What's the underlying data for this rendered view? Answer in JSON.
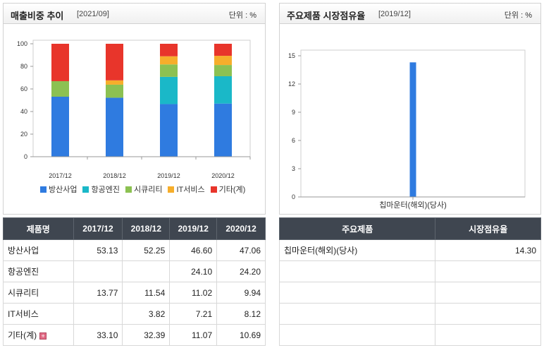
{
  "left": {
    "title": "매출비중 추이",
    "date": "[2021/09]",
    "unit": "단위 : %",
    "table": {
      "headers": [
        "제품명",
        "2017/12",
        "2018/12",
        "2019/12",
        "2020/12"
      ],
      "rows": [
        {
          "label": "방산사업",
          "cells": [
            "53.13",
            "52.25",
            "46.60",
            "47.06"
          ]
        },
        {
          "label": "항공엔진",
          "cells": [
            "",
            "",
            "24.10",
            "24.20"
          ]
        },
        {
          "label": "시큐리티",
          "cells": [
            "13.77",
            "11.54",
            "11.02",
            "9.94"
          ]
        },
        {
          "label": "IT서비스",
          "cells": [
            "",
            "3.82",
            "7.21",
            "8.12"
          ]
        },
        {
          "label": "기타(계)",
          "cells": [
            "33.10",
            "32.39",
            "11.07",
            "10.69"
          ]
        }
      ]
    }
  },
  "right": {
    "title": "주요제품 시장점유율",
    "date": "[2019/12]",
    "unit": "단위 : %",
    "table": {
      "headers": [
        "주요제품",
        "시장점유율"
      ],
      "rows": [
        {
          "label": "칩마운터(해외)(당사)",
          "cells": [
            "14.30"
          ]
        },
        {
          "label": "",
          "cells": [
            ""
          ]
        },
        {
          "label": "",
          "cells": [
            ""
          ]
        },
        {
          "label": "",
          "cells": [
            ""
          ]
        },
        {
          "label": "",
          "cells": [
            ""
          ]
        }
      ]
    }
  },
  "chart_data": [
    {
      "type": "bar",
      "stacked": true,
      "title": "매출비중 추이",
      "categories": [
        "2017/12",
        "2018/12",
        "2019/12",
        "2020/12"
      ],
      "ylim": [
        0,
        100
      ],
      "yticks": [
        "0",
        "20",
        "40",
        "60",
        "80",
        "100"
      ],
      "grid": false,
      "legend_position": "bottom",
      "series": [
        {
          "name": "방산사업",
          "color": "#2f7be0",
          "values": [
            53.13,
            52.25,
            46.6,
            47.06
          ]
        },
        {
          "name": "항공엔진",
          "color": "#1ab8c8",
          "values": [
            0,
            0,
            24.1,
            24.2
          ]
        },
        {
          "name": "시큐리티",
          "color": "#8cc152",
          "values": [
            13.77,
            11.54,
            11.02,
            9.94
          ]
        },
        {
          "name": "IT서비스",
          "color": "#f6ae2b",
          "values": [
            0,
            3.82,
            7.21,
            8.12
          ]
        },
        {
          "name": "기타(계)",
          "color": "#e8352b",
          "values": [
            33.1,
            32.39,
            11.07,
            10.69
          ]
        }
      ]
    },
    {
      "type": "bar",
      "title": "주요제품 시장점유율",
      "categories": [
        "칩마운터(해외)(당사)"
      ],
      "ylim": [
        0,
        15
      ],
      "yticks": [
        "0",
        "3",
        "6",
        "9",
        "12",
        "15"
      ],
      "grid": false,
      "series": [
        {
          "color": "#2f7be0",
          "values": [
            14.3
          ]
        }
      ]
    }
  ]
}
